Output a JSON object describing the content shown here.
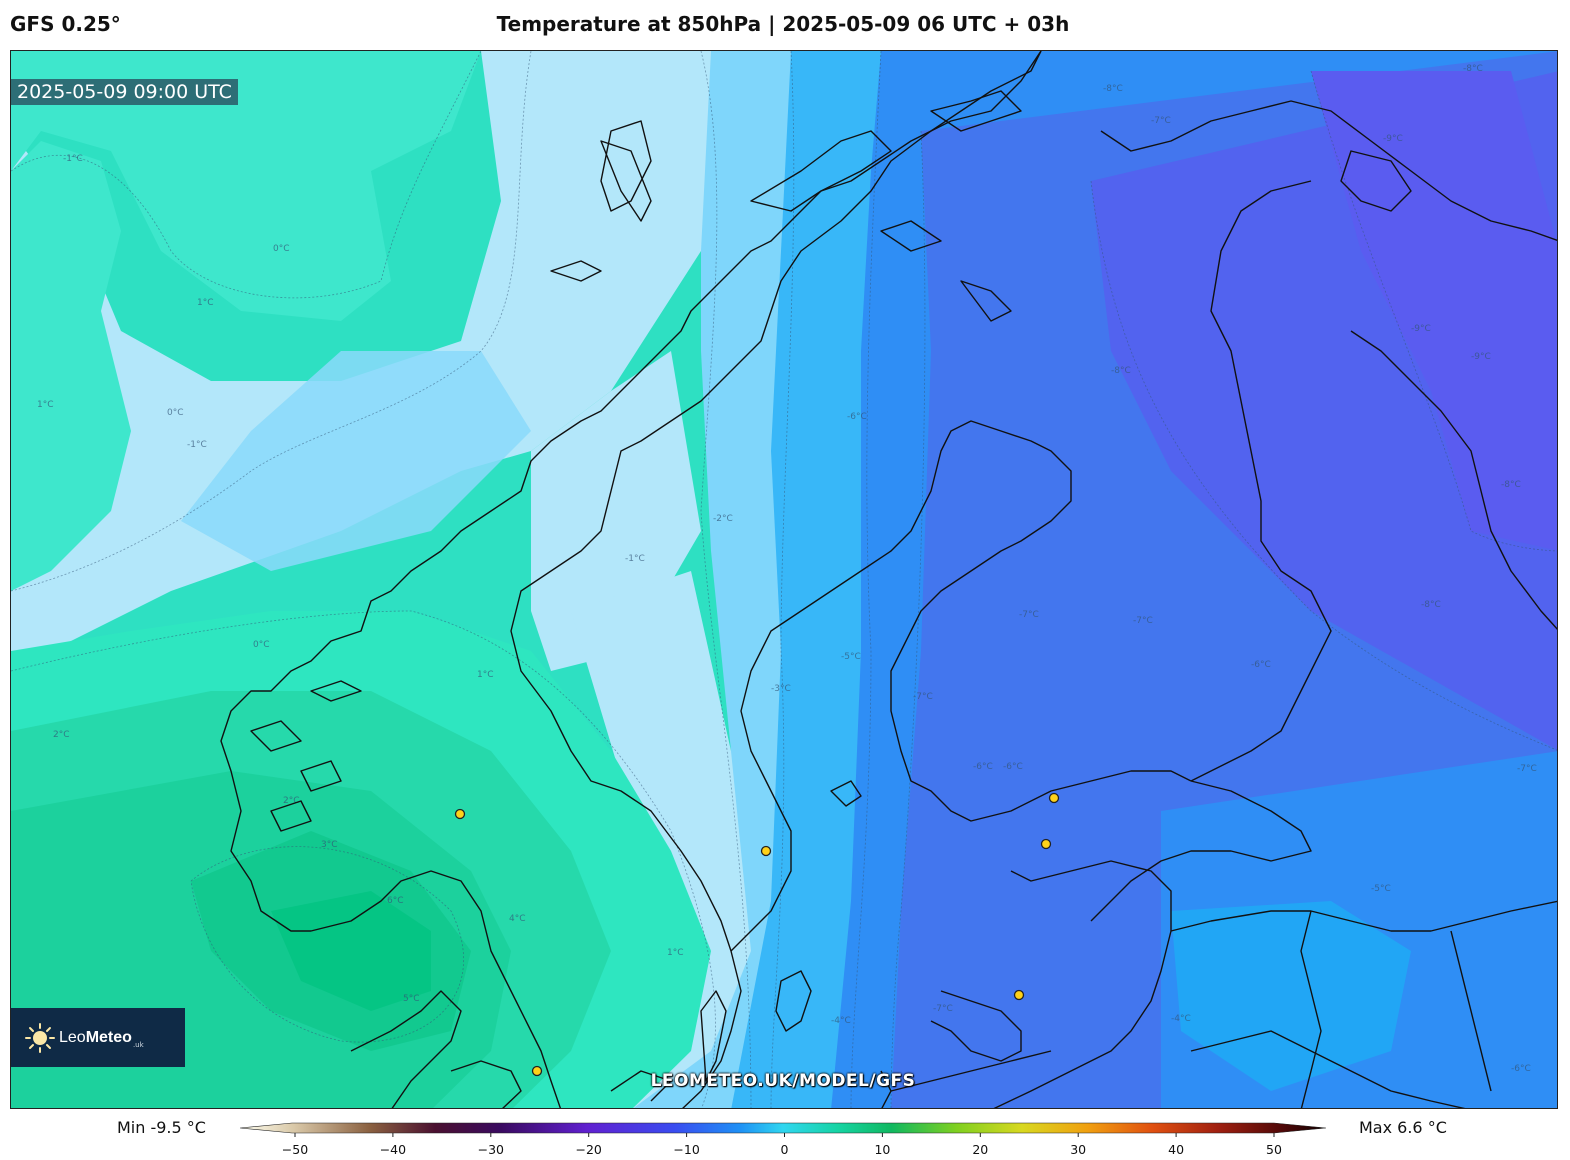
{
  "header": {
    "model": "GFS 0.25°",
    "title": "Temperature at 850hPa | 2025-05-09 06 UTC + 03h"
  },
  "map": {
    "valid_time": "2025-05-09 09:00 UTC",
    "watermark": "LEOMETEO.UK/MODEL/GFS",
    "contour_labels": [
      "-1°C",
      "0°C",
      "1°C",
      "1°C",
      "0°C",
      "-1°C",
      "-2°C",
      "-1°C",
      "1°C",
      "2°C",
      "0°C",
      "2°C",
      "3°C",
      "4°C",
      "5°C",
      "6°C",
      "1°C",
      "-3°C",
      "-4°C",
      "-5°C",
      "-6°C",
      "-7°C",
      "-7°C",
      "-6°C",
      "-6°C",
      "-7°C",
      "-8°C",
      "-8°C",
      "-7°C",
      "-8°C",
      "-9°C",
      "-9°C",
      "-8°C",
      "-8°C",
      "-9°C",
      "-6°C",
      "-7°C",
      "-5°C",
      "-4°C",
      "-6°C",
      "-7°C"
    ]
  },
  "logo": {
    "name_light": "Leo",
    "name_bold": "Meteo",
    "suffix": ".uk"
  },
  "legend": {
    "min_label": "Min -9.5 °C",
    "max_label": "Max 6.6 °C",
    "ticks": [
      "−50",
      "−40",
      "−30",
      "−20",
      "−10",
      "0",
      "10",
      "20",
      "30",
      "40",
      "50"
    ],
    "range": [
      -50,
      50
    ],
    "unit": "°C"
  },
  "colors": {
    "sea_cold": "#b3e7fa",
    "warm_core": "#00c98a",
    "cold_core": "#5a5cf0",
    "coastline": "#111111"
  }
}
